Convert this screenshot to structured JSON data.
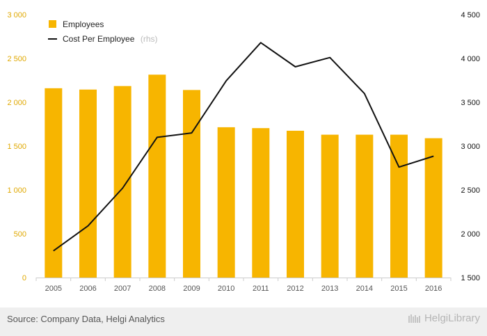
{
  "chart_data": {
    "type": "bar",
    "categories": [
      "2005",
      "2006",
      "2007",
      "2008",
      "2009",
      "2010",
      "2011",
      "2012",
      "2013",
      "2014",
      "2015",
      "2016"
    ],
    "series": [
      {
        "name": "Employees",
        "type": "bar",
        "axis": "left",
        "color": "#f7b500",
        "values": [
          2160,
          2145,
          2185,
          2315,
          2140,
          1715,
          1705,
          1675,
          1630,
          1630,
          1630,
          1590
        ]
      },
      {
        "name": "Cost Per Employee",
        "name_suffix": "(rhs)",
        "type": "line",
        "axis": "right",
        "color": "#111111",
        "values": [
          1805,
          2090,
          2520,
          3100,
          3150,
          3745,
          4180,
          3905,
          4010,
          3600,
          2760,
          2885
        ]
      }
    ],
    "y_left": {
      "ylim": [
        0,
        3000
      ],
      "ticks": [
        "0",
        "500",
        "1 000",
        "1 500",
        "2 000",
        "2 500",
        "3 000"
      ],
      "tick_values": [
        0,
        500,
        1000,
        1500,
        2000,
        2500,
        3000
      ]
    },
    "y_right": {
      "ylim": [
        1500,
        4500
      ],
      "ticks": [
        "1 500",
        "2 000",
        "2 500",
        "3 000",
        "3 500",
        "4 000",
        "4 500"
      ],
      "tick_values": [
        1500,
        2000,
        2500,
        3000,
        3500,
        4000,
        4500
      ]
    },
    "title": "",
    "xlabel": "",
    "ylabel": "",
    "grid": false,
    "legend": "top-left"
  },
  "footer": {
    "source": "Source: Company Data, Helgi Analytics",
    "brand": "HelgiLibrary"
  }
}
